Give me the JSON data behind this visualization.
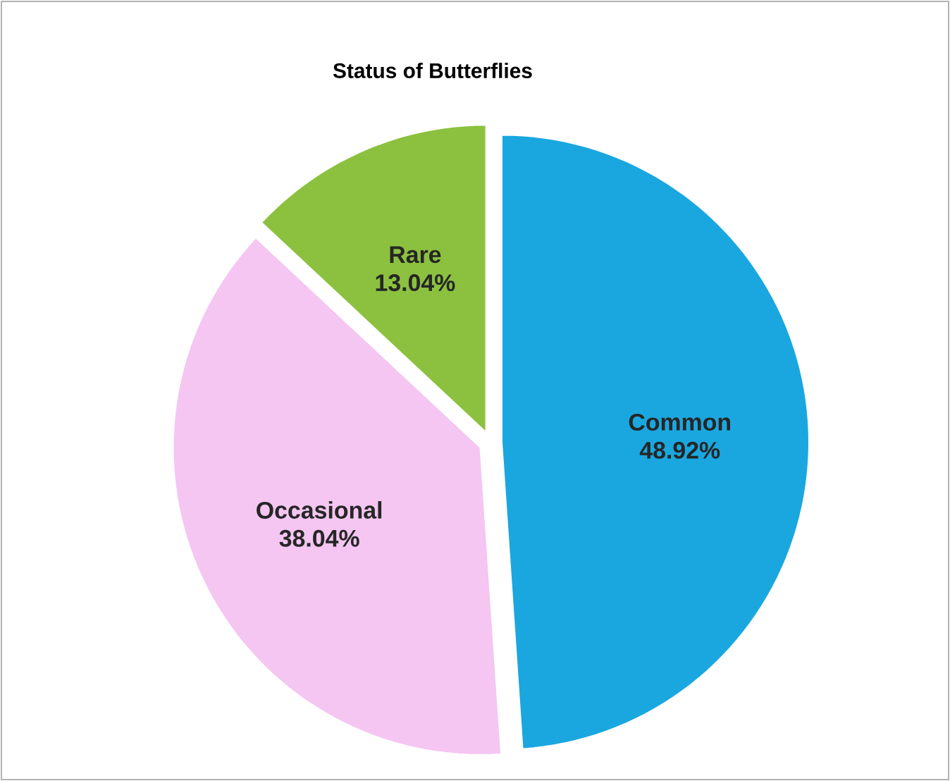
{
  "chart_data": {
    "type": "pie",
    "title": "Status of Butterflies",
    "categories": [
      "Common",
      "Occasional",
      "Rare"
    ],
    "values": [
      48.92,
      38.04,
      13.04
    ],
    "colors": [
      "#1aa7df",
      "#f4c6f1",
      "#8cc13f"
    ],
    "value_labels": [
      "48.92%",
      "38.04%",
      "13.04%"
    ]
  }
}
